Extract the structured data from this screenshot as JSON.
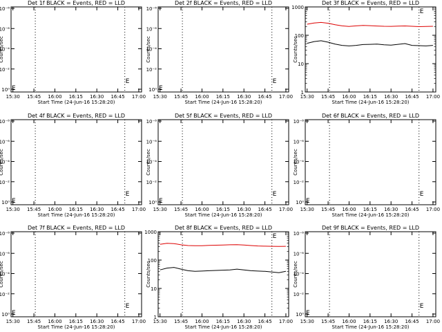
{
  "xlabel": "Start Time (24-Jun-16 15:28:20)",
  "ylabel": "Counts/sec",
  "x_ticks": [
    "15:30",
    "15:45",
    "16:00",
    "16:15",
    "16:30",
    "16:45",
    "17:00"
  ],
  "x_range_minutes": [
    -1.33,
    92
  ],
  "markers": {
    "dotted_minutes": [
      16,
      80,
      93
    ],
    "e_minutes": 80,
    "e_label": "E"
  },
  "colors": {
    "events": "#000000",
    "lld": "#dd0000",
    "axes": "#000000"
  },
  "chart_data": [
    {
      "type": "line",
      "title": "Det 1f BLACK = Events, RED = LLD",
      "scale": "log-empty",
      "y_ticks": [
        "10⁻⁸",
        "10⁻⁶",
        "10⁻⁴",
        "10⁻²",
        "10⁰"
      ],
      "series": []
    },
    {
      "type": "line",
      "title": "Det 2f BLACK = Events, RED = LLD",
      "scale": "log-empty",
      "y_ticks": [
        "10⁻⁸",
        "10⁻⁶",
        "10⁻⁴",
        "10⁻²",
        "10⁰"
      ],
      "series": []
    },
    {
      "type": "line",
      "title": "Det 3f BLACK = Events, RED = LLD",
      "scale": "log",
      "ylim": [
        1,
        1000
      ],
      "y_ticks": [
        "1000",
        "100",
        "10",
        "1"
      ],
      "series": [
        {
          "role": "LLD",
          "color": "#dd0000",
          "x": [
            0,
            5,
            10,
            15,
            20,
            25,
            30,
            35,
            40,
            45,
            50,
            55,
            60,
            65,
            70,
            75,
            80,
            85,
            90
          ],
          "y": [
            245,
            270,
            285,
            265,
            235,
            215,
            205,
            215,
            222,
            218,
            212,
            208,
            206,
            210,
            214,
            208,
            202,
            204,
            208
          ]
        },
        {
          "role": "Events",
          "color": "#000000",
          "x": [
            0,
            5,
            10,
            15,
            20,
            25,
            30,
            35,
            40,
            45,
            50,
            55,
            60,
            65,
            70,
            75,
            80,
            85,
            90
          ],
          "y": [
            52,
            60,
            64,
            57,
            49,
            44,
            42,
            44,
            47,
            48,
            49,
            46,
            45,
            48,
            51,
            44,
            43,
            42,
            44
          ]
        }
      ]
    },
    {
      "type": "line",
      "title": "Det 4f BLACK = Events, RED = LLD",
      "scale": "log-empty",
      "y_ticks": [
        "10⁻⁸",
        "10⁻⁶",
        "10⁻⁴",
        "10⁻²",
        "10⁰"
      ],
      "series": []
    },
    {
      "type": "line",
      "title": "Det 5f BLACK = Events, RED = LLD",
      "scale": "log-empty",
      "y_ticks": [
        "10⁻⁸",
        "10⁻⁶",
        "10⁻⁴",
        "10⁻²",
        "10⁰"
      ],
      "series": []
    },
    {
      "type": "line",
      "title": "Det 6f BLACK = Events, RED = LLD",
      "scale": "log-empty",
      "y_ticks": [
        "10⁻⁸",
        "10⁻⁶",
        "10⁻⁴",
        "10⁻²",
        "10⁰"
      ],
      "series": []
    },
    {
      "type": "line",
      "title": "Det 7f BLACK = Events, RED = LLD",
      "scale": "log-empty",
      "y_ticks": [
        "10⁻⁸",
        "10⁻⁶",
        "10⁻⁴",
        "10⁻²",
        "10⁰"
      ],
      "series": []
    },
    {
      "type": "line",
      "title": "Det 8f BLACK = Events, RED = LLD",
      "scale": "log",
      "ylim": [
        1,
        1000
      ],
      "y_ticks": [
        "1000",
        "100",
        "10",
        "1"
      ],
      "series": [
        {
          "role": "LLD",
          "color": "#dd0000",
          "x": [
            0,
            5,
            10,
            15,
            20,
            25,
            30,
            35,
            40,
            45,
            50,
            55,
            60,
            65,
            70,
            75,
            80,
            85,
            90
          ],
          "y": [
            360,
            390,
            380,
            345,
            325,
            320,
            322,
            328,
            335,
            340,
            346,
            350,
            340,
            325,
            315,
            310,
            305,
            302,
            306
          ]
        },
        {
          "role": "Events",
          "color": "#000000",
          "x": [
            0,
            5,
            10,
            15,
            20,
            25,
            30,
            35,
            40,
            45,
            50,
            55,
            60,
            65,
            70,
            75,
            80,
            85,
            90
          ],
          "y": [
            45,
            52,
            55,
            48,
            42,
            40,
            41,
            42,
            43,
            44,
            45,
            48,
            45,
            42,
            41,
            40,
            38,
            36,
            40
          ]
        }
      ]
    },
    {
      "type": "line",
      "title": "Det 9f BLACK = Events, RED = LLD",
      "scale": "log-empty",
      "y_ticks": [
        "10⁻⁸",
        "10⁻⁶",
        "10⁻⁴",
        "10⁻²",
        "10⁰"
      ],
      "series": []
    }
  ]
}
